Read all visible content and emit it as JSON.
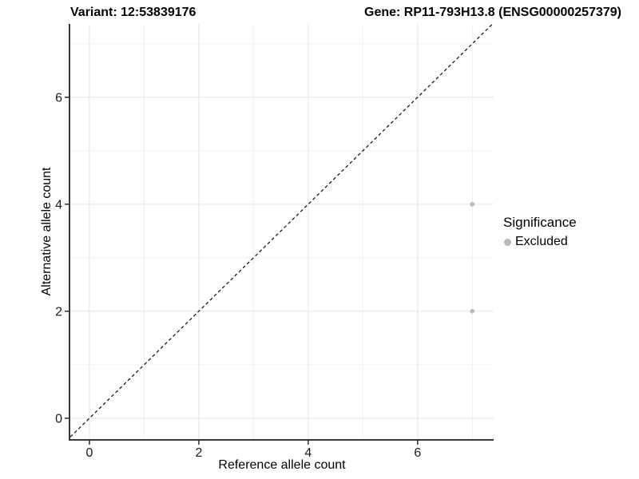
{
  "chart_data": {
    "type": "scatter",
    "title_left": "Variant: 12:53839176",
    "title_right": "Gene: RP11-793H13.8 (ENSG00000257379)",
    "xlabel": "Reference allele count",
    "ylabel": "Alternative allele count",
    "xlim": [
      -0.35,
      7.39
    ],
    "ylim": [
      -0.39,
      7.37
    ],
    "xticks": [
      0,
      2,
      4,
      6
    ],
    "yticks": [
      0,
      2,
      4,
      6
    ],
    "x_minor_gridlines": [
      1,
      3,
      5,
      7
    ],
    "y_minor_gridlines": [
      1,
      3,
      5,
      7
    ],
    "grid": "major and minor, light gray, on white panel",
    "reference_line": {
      "type": "identity y=x",
      "style": "dashed",
      "color": "#1a1a1a"
    },
    "series": [
      {
        "name": "Excluded",
        "color": "#b9b9b9",
        "marker": "circle",
        "marker_radius_px": 2.8,
        "points": [
          [
            7,
            4
          ],
          [
            7,
            2
          ]
        ]
      }
    ],
    "legend": {
      "title": "Significance",
      "position": "right",
      "items": [
        {
          "label": "Excluded",
          "color": "#b9b9b9"
        }
      ]
    }
  },
  "colors": {
    "background": "#ffffff",
    "grid_major": "#e3e3e3",
    "grid_minor": "#f0f0f0",
    "axis_line": "#383838",
    "tick_mark": "#383838",
    "tick_label": "#1a1a1a"
  }
}
